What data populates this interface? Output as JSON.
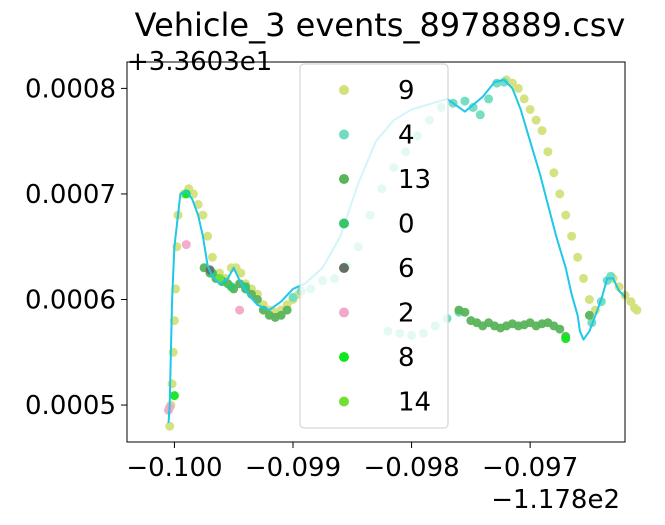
{
  "chart_data": {
    "type": "scatter",
    "title": "Vehicle_3 events_8978889.csv",
    "xlabel": "",
    "ylabel": "",
    "x_offset_label": "−1.178e2",
    "y_offset_label": "+3.3603e1",
    "x_offset": -117.8,
    "y_offset": 33.603,
    "xlim": [
      -0.1004,
      -0.0962
    ],
    "ylim": [
      0.000465,
      0.000825
    ],
    "x_ticks": [
      {
        "value": -0.1,
        "label": "−0.100"
      },
      {
        "value": -0.099,
        "label": "−0.099"
      },
      {
        "value": -0.098,
        "label": "−0.098"
      },
      {
        "value": -0.097,
        "label": "−0.097"
      }
    ],
    "y_ticks": [
      {
        "value": 0.0005,
        "label": "0.0005"
      },
      {
        "value": 0.0006,
        "label": "0.0006"
      },
      {
        "value": 0.0007,
        "label": "0.0007"
      },
      {
        "value": 0.0008,
        "label": "0.0008"
      }
    ],
    "grid": false,
    "legend_placement": "upper-center",
    "line": {
      "color": "#1fc7e8",
      "x": [
        -0.10005,
        -0.10004,
        -0.10003,
        -0.10002,
        -0.1,
        -0.09995,
        -0.0999,
        -0.09985,
        -0.0998,
        -0.09976,
        -0.09972,
        -0.09968,
        -0.09962,
        -0.09955,
        -0.0995,
        -0.09945,
        -0.09938,
        -0.0993,
        -0.0992,
        -0.0991,
        -0.099,
        -0.0989,
        -0.09875,
        -0.0986,
        -0.09845,
        -0.0983,
        -0.09815,
        -0.098,
        -0.09785,
        -0.0977,
        -0.09755,
        -0.0974,
        -0.0973,
        -0.09722,
        -0.09715,
        -0.09708,
        -0.097,
        -0.09692,
        -0.09685,
        -0.09678,
        -0.0967,
        -0.09665,
        -0.0966,
        -0.09658,
        -0.09655,
        -0.0965,
        -0.09645,
        -0.0964,
        -0.09635,
        -0.0963,
        -0.09625,
        -0.09622,
        -0.0962
      ],
      "y": [
        0.000483,
        0.0005,
        0.00055,
        0.0006,
        0.00065,
        0.0007,
        0.000703,
        0.000695,
        0.00068,
        0.00066,
        0.000632,
        0.000622,
        0.000615,
        0.00062,
        0.00063,
        0.000618,
        0.000605,
        0.000595,
        0.00059,
        0.000598,
        0.00061,
        0.000615,
        0.00063,
        0.00066,
        0.00071,
        0.00075,
        0.00077,
        0.00078,
        0.000785,
        0.00079,
        0.000778,
        0.000792,
        0.000806,
        0.000808,
        0.0008,
        0.00078,
        0.00075,
        0.00072,
        0.00069,
        0.00066,
        0.00063,
        0.000605,
        0.000585,
        0.00057,
        0.000562,
        0.00057,
        0.000585,
        0.0006,
        0.00062,
        0.00062,
        0.000608,
        0.000605,
        0.000602
      ]
    },
    "series": [
      {
        "name": "9",
        "color": "#d4e07a",
        "points": [
          [
            -0.10004,
            0.00048
          ],
          [
            -0.10003,
            0.0005
          ],
          [
            -0.10002,
            0.00052
          ],
          [
            -0.10001,
            0.00055
          ],
          [
            -0.1,
            0.00058
          ],
          [
            -0.09999,
            0.00061
          ],
          [
            -0.09998,
            0.00065
          ],
          [
            -0.09997,
            0.00068
          ],
          [
            -0.09992,
            0.0007
          ],
          [
            -0.09988,
            0.000705
          ],
          [
            -0.09984,
            0.0007
          ],
          [
            -0.0998,
            0.00069
          ],
          [
            -0.09976,
            0.00068
          ],
          [
            -0.09972,
            0.00066
          ],
          [
            -0.09968,
            0.00064
          ],
          [
            -0.09962,
            0.000625
          ],
          [
            -0.09957,
            0.00062
          ],
          [
            -0.09952,
            0.00063
          ],
          [
            -0.09948,
            0.00063
          ],
          [
            -0.09944,
            0.000625
          ],
          [
            -0.0994,
            0.000615
          ],
          [
            -0.09935,
            0.00061
          ],
          [
            -0.0993,
            0.000605
          ],
          [
            -0.09925,
            0.000595
          ],
          [
            -0.0992,
            0.00059
          ],
          [
            -0.09915,
            0.000588
          ],
          [
            -0.0991,
            0.00059
          ],
          [
            -0.09905,
            0.000595
          ],
          [
            -0.099,
            0.0006
          ],
          [
            -0.09895,
            0.000605
          ],
          [
            -0.0972,
            0.000808
          ],
          [
            -0.09715,
            0.000805
          ],
          [
            -0.0971,
            0.0008
          ],
          [
            -0.09705,
            0.00079
          ],
          [
            -0.097,
            0.00078
          ],
          [
            -0.09695,
            0.00077
          ],
          [
            -0.0969,
            0.00076
          ],
          [
            -0.09685,
            0.00074
          ],
          [
            -0.0968,
            0.00072
          ],
          [
            -0.09675,
            0.0007
          ],
          [
            -0.0967,
            0.00068
          ],
          [
            -0.09665,
            0.00066
          ],
          [
            -0.0966,
            0.00064
          ],
          [
            -0.09655,
            0.00062
          ],
          [
            -0.0965,
            0.0006
          ],
          [
            -0.09645,
            0.00059
          ],
          [
            -0.0963,
            0.00062
          ],
          [
            -0.09625,
            0.000612
          ],
          [
            -0.0962,
            0.000604
          ],
          [
            -0.09615,
            0.000598
          ],
          [
            -0.09612,
            0.000592
          ],
          [
            -0.0961,
            0.00059
          ]
        ]
      },
      {
        "name": "4",
        "color": "#6fdcc0",
        "points": [
          [
            -0.099,
            0.000602
          ],
          [
            -0.09893,
            0.000608
          ],
          [
            -0.09885,
            0.00061
          ],
          [
            -0.09875,
            0.000618
          ],
          [
            -0.09865,
            0.00062
          ],
          [
            -0.09855,
            0.000632
          ],
          [
            -0.09845,
            0.00065
          ],
          [
            -0.09835,
            0.00068
          ],
          [
            -0.09825,
            0.000705
          ],
          [
            -0.09815,
            0.000725
          ],
          [
            -0.09805,
            0.00074
          ],
          [
            -0.09795,
            0.000755
          ],
          [
            -0.09785,
            0.00077
          ],
          [
            -0.09775,
            0.000782
          ],
          [
            -0.09765,
            0.000786
          ],
          [
            -0.09755,
            0.000788
          ],
          [
            -0.09748,
            0.000782
          ],
          [
            -0.09742,
            0.000775
          ],
          [
            -0.09735,
            0.00079
          ],
          [
            -0.09728,
            0.000805
          ],
          [
            -0.09722,
            0.000806
          ],
          [
            -0.0982,
            0.00057
          ],
          [
            -0.0981,
            0.000568
          ],
          [
            -0.098,
            0.000566
          ],
          [
            -0.0979,
            0.000568
          ],
          [
            -0.0978,
            0.000575
          ],
          [
            -0.0977,
            0.000582
          ],
          [
            -0.0976,
            0.000588
          ],
          [
            -0.09648,
            0.000578
          ],
          [
            -0.0964,
            0.000598
          ],
          [
            -0.09635,
            0.000618
          ],
          [
            -0.09632,
            0.000622
          ]
        ]
      },
      {
        "name": "13",
        "color": "#5ab45a",
        "points": [
          [
            -0.09975,
            0.00063
          ],
          [
            -0.0997,
            0.000625
          ],
          [
            -0.09965,
            0.00062
          ],
          [
            -0.0996,
            0.000618
          ],
          [
            -0.09955,
            0.000615
          ],
          [
            -0.0995,
            0.00061
          ],
          [
            -0.09945,
            0.000615
          ],
          [
            -0.0994,
            0.00061
          ],
          [
            -0.09935,
            0.000605
          ],
          [
            -0.0993,
            0.0006
          ],
          [
            -0.09925,
            0.00059
          ],
          [
            -0.0992,
            0.000585
          ],
          [
            -0.09915,
            0.000583
          ],
          [
            -0.0991,
            0.000585
          ],
          [
            -0.09905,
            0.00059
          ],
          [
            -0.0976,
            0.00059
          ],
          [
            -0.09755,
            0.000588
          ],
          [
            -0.0975,
            0.00058
          ],
          [
            -0.09745,
            0.000578
          ],
          [
            -0.0974,
            0.000575
          ],
          [
            -0.09735,
            0.000578
          ],
          [
            -0.0973,
            0.000575
          ],
          [
            -0.09725,
            0.000573
          ],
          [
            -0.0972,
            0.000575
          ],
          [
            -0.09715,
            0.000577
          ],
          [
            -0.0971,
            0.000575
          ],
          [
            -0.09705,
            0.000576
          ],
          [
            -0.097,
            0.000578
          ],
          [
            -0.09695,
            0.000575
          ],
          [
            -0.0969,
            0.000577
          ],
          [
            -0.09685,
            0.000578
          ],
          [
            -0.0968,
            0.000575
          ],
          [
            -0.09675,
            0.000572
          ],
          [
            -0.0967,
            0.000565
          ],
          [
            -0.0965,
            0.000585
          ]
        ]
      },
      {
        "name": "0",
        "color": "#35c56a",
        "points": [
          [
            -0.09968,
            0.000625
          ],
          [
            -0.0996,
            0.000617
          ],
          [
            -0.09952,
            0.000612
          ],
          [
            -0.0994,
            0.000612
          ]
        ]
      },
      {
        "name": "6",
        "color": "#646e64",
        "points": [
          [
            -0.0997,
            0.000628
          ]
        ]
      },
      {
        "name": "2",
        "color": "#f2a8c8",
        "points": [
          [
            -0.10005,
            0.000495
          ],
          [
            -0.10004,
            0.000498
          ],
          [
            -0.09945,
            0.00059
          ],
          [
            -0.0999,
            0.000652
          ]
        ]
      },
      {
        "name": "8",
        "color": "#12e61e",
        "points": [
          [
            -0.1,
            0.000509
          ],
          [
            -0.0999,
            0.0007
          ],
          [
            -0.0967,
            0.000563
          ]
        ]
      },
      {
        "name": "14",
        "color": "#72e032",
        "points": [
          [
            -0.09962,
            0.00062
          ]
        ]
      }
    ]
  }
}
